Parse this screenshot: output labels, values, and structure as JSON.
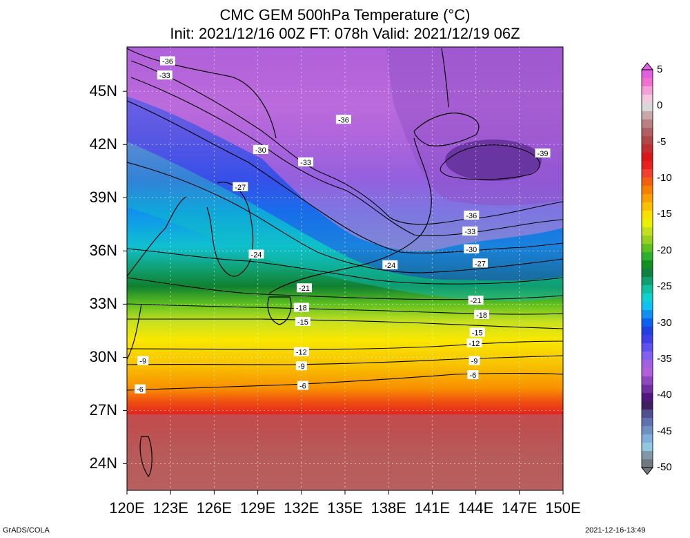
{
  "title": {
    "line1": "CMC GEM 500hPa Temperature (°C)",
    "line2": "Init: 2021/12/16 00Z  FT: 078h  Valid: 2021/12/19 06Z"
  },
  "map": {
    "lon_labels": [
      "120E",
      "123E",
      "126E",
      "129E",
      "132E",
      "135E",
      "138E",
      "141E",
      "144E",
      "147E",
      "150E"
    ],
    "lat_labels": [
      "45N",
      "42N",
      "39N",
      "36N",
      "33N",
      "30N",
      "27N",
      "24N"
    ],
    "lat_values": [
      45,
      42,
      39,
      36,
      33,
      30,
      27,
      24
    ],
    "lon_range": [
      120,
      150
    ],
    "lat_range": [
      22.5,
      47.5
    ],
    "grid": true,
    "contour_labels": [
      {
        "text": "-36",
        "lon": 122.8,
        "lat": 46.7
      },
      {
        "text": "-33",
        "lon": 122.6,
        "lat": 45.9
      },
      {
        "text": "-36",
        "lon": 134.9,
        "lat": 43.4
      },
      {
        "text": "-30",
        "lon": 129.2,
        "lat": 41.7
      },
      {
        "text": "-33",
        "lon": 132.3,
        "lat": 41.0
      },
      {
        "text": "-39",
        "lon": 148.6,
        "lat": 41.5
      },
      {
        "text": "-27",
        "lon": 127.8,
        "lat": 39.6
      },
      {
        "text": "-36",
        "lon": 143.7,
        "lat": 38.0
      },
      {
        "text": "-33",
        "lon": 143.6,
        "lat": 37.1
      },
      {
        "text": "-30",
        "lon": 143.7,
        "lat": 36.1
      },
      {
        "text": "-24",
        "lon": 128.9,
        "lat": 35.8
      },
      {
        "text": "-24",
        "lon": 138.1,
        "lat": 35.2
      },
      {
        "text": "-27",
        "lon": 144.3,
        "lat": 35.3
      },
      {
        "text": "-21",
        "lon": 132.2,
        "lat": 33.9
      },
      {
        "text": "-21",
        "lon": 144.0,
        "lat": 33.2
      },
      {
        "text": "-18",
        "lon": 132.0,
        "lat": 32.8
      },
      {
        "text": "-18",
        "lon": 144.4,
        "lat": 32.4
      },
      {
        "text": "-15",
        "lon": 132.1,
        "lat": 32.0
      },
      {
        "text": "-15",
        "lon": 144.1,
        "lat": 31.4
      },
      {
        "text": "-12",
        "lon": 132.0,
        "lat": 30.3
      },
      {
        "text": "-12",
        "lon": 143.9,
        "lat": 30.8
      },
      {
        "text": "-9",
        "lon": 121.1,
        "lat": 29.8
      },
      {
        "text": "-9",
        "lon": 132.0,
        "lat": 29.5
      },
      {
        "text": "-9",
        "lon": 143.9,
        "lat": 29.8
      },
      {
        "text": "-6",
        "lon": 120.9,
        "lat": 28.2
      },
      {
        "text": "-6",
        "lon": 132.1,
        "lat": 28.4
      },
      {
        "text": "-6",
        "lon": 143.8,
        "lat": 29.0
      }
    ]
  },
  "colorbar": {
    "ticks": [
      "5",
      "0",
      "-5",
      "-10",
      "-15",
      "-20",
      "-25",
      "-30",
      "-35",
      "-40",
      "-45",
      "-50"
    ],
    "colors": [
      "#e060e0",
      "#f070d0",
      "#f4a0d8",
      "#f4c8dc",
      "#d8d8d8",
      "#c8a8a8",
      "#b88080",
      "#b06060",
      "#b04848",
      "#c03030",
      "#d81818",
      "#e82020",
      "#f04030",
      "#f06010",
      "#f88000",
      "#f8a000",
      "#f8c000",
      "#f8e000",
      "#e8f000",
      "#c0e020",
      "#98d020",
      "#60c020",
      "#30b030",
      "#109020",
      "#108040",
      "#10a070",
      "#10c0a0",
      "#10d0d0",
      "#10c0f0",
      "#1090f0",
      "#1060f0",
      "#2040e0",
      "#4040e8",
      "#6050f0",
      "#8060f0",
      "#a060e0",
      "#b060d8",
      "#9048c0",
      "#7030a0",
      "#501880",
      "#402060",
      "#505090",
      "#6070b0",
      "#7090c0",
      "#80b0d8",
      "#90c8e0",
      "#8098a8",
      "#707880"
    ]
  },
  "footer": {
    "left": "GrADS/COLA",
    "right": "2021-12-16-13:49"
  }
}
